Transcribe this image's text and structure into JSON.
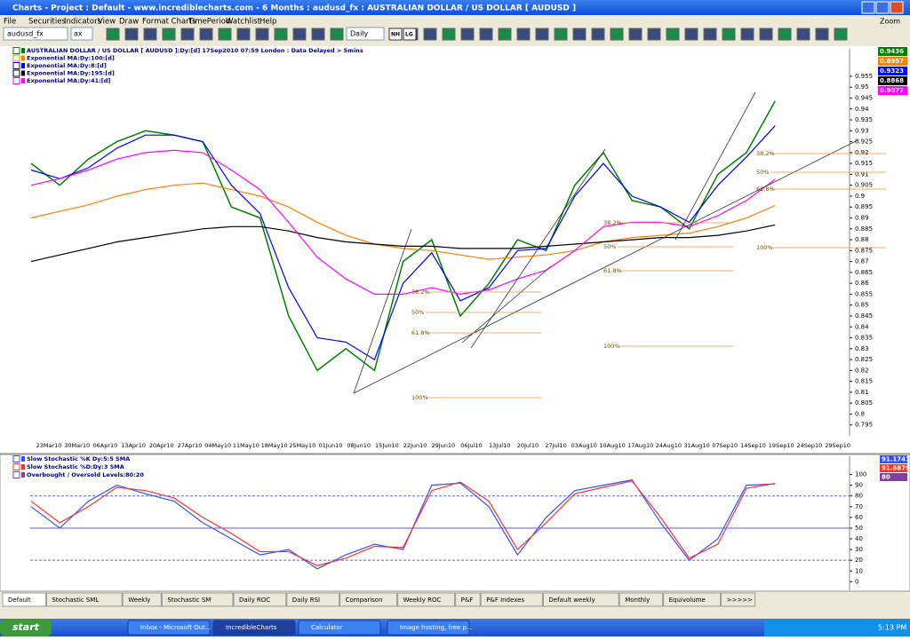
{
  "window": {
    "title": "Charts - Project : Default - www.incrediblecharts.com - 6 Months : audusd_fx : AUSTRALIAN DOLLAR / US DOLLAR [ AUDUSD ]",
    "zoom": "Zoom"
  },
  "menu": [
    "File",
    "Securities",
    "Indicators",
    "View",
    "Draw",
    "Format Charts",
    "TimePeriod",
    "Watchlist",
    "Help"
  ],
  "toolbar": {
    "symbol": "audusd_fx",
    "field": "ax",
    "period": "Daily",
    "buttons": [
      "NH",
      "LG"
    ]
  },
  "price_chart": {
    "type": "line",
    "ylim": [
      0.79,
      0.9676
    ],
    "yticks": [
      0.955,
      0.95,
      0.945,
      0.94,
      0.935,
      0.93,
      0.925,
      0.92,
      0.915,
      0.91,
      0.905,
      0.9,
      0.895,
      0.89,
      0.885,
      0.88,
      0.875,
      0.87,
      0.865,
      0.86,
      0.855,
      0.85,
      0.845,
      0.84,
      0.835,
      0.83,
      0.825,
      0.82,
      0.815,
      0.81,
      0.805,
      0.8,
      0.795
    ],
    "categories": [
      "23Mar10",
      "30Mar10",
      "06Apr10",
      "13Apr10",
      "20Apr10",
      "27Apr10",
      "04May10",
      "11May10",
      "18May10",
      "25May10",
      "01Jun10",
      "08Jun10",
      "15Jun10",
      "22Jun10",
      "29Jun10",
      "06Jul10",
      "13Jul10",
      "20Jul10",
      "27Jul10",
      "03Aug10",
      "10Aug10",
      "17Aug10",
      "24Aug10",
      "31Aug10",
      "07Sep10",
      "14Sep10",
      "19Sep10",
      "24Sep10",
      "29Sep10"
    ],
    "series": [
      {
        "name": "AUSTRALIAN DOLLAR / US DOLLAR [ AUDUSD ]:Dy:[d] 17Sep2010 07:59 London : Data Delayed > 5mins",
        "color": "#008000",
        "last_value": 0.9436,
        "values": [
          0.915,
          0.905,
          0.917,
          0.925,
          0.93,
          0.928,
          0.925,
          0.895,
          0.89,
          0.845,
          0.82,
          0.83,
          0.82,
          0.87,
          0.88,
          0.845,
          0.86,
          0.88,
          0.875,
          0.905,
          0.92,
          0.898,
          0.895,
          0.885,
          0.91,
          0.92,
          0.9436
        ]
      },
      {
        "name": "Exponential MA:Dy:100:[d]",
        "color": "#ff8000",
        "last_value": 0.8957,
        "values": [
          0.89,
          0.893,
          0.896,
          0.9,
          0.903,
          0.905,
          0.906,
          0.903,
          0.9,
          0.895,
          0.888,
          0.882,
          0.878,
          0.876,
          0.875,
          0.873,
          0.871,
          0.872,
          0.873,
          0.875,
          0.879,
          0.881,
          0.882,
          0.883,
          0.886,
          0.89,
          0.8957
        ]
      },
      {
        "name": "Exponential MA:Dy:8:[d]",
        "color": "#0000ff",
        "last_value": 0.9323,
        "values": [
          0.912,
          0.908,
          0.913,
          0.922,
          0.928,
          0.928,
          0.925,
          0.905,
          0.892,
          0.858,
          0.835,
          0.833,
          0.825,
          0.86,
          0.874,
          0.852,
          0.858,
          0.875,
          0.876,
          0.9,
          0.915,
          0.9,
          0.895,
          0.888,
          0.905,
          0.918,
          0.9323
        ]
      },
      {
        "name": "Exponential MA:Dy:195:[d]",
        "color": "#000000",
        "last_value": 0.8868,
        "values": [
          0.87,
          0.873,
          0.876,
          0.879,
          0.881,
          0.883,
          0.885,
          0.886,
          0.886,
          0.884,
          0.881,
          0.879,
          0.878,
          0.877,
          0.877,
          0.876,
          0.876,
          0.876,
          0.877,
          0.878,
          0.879,
          0.88,
          0.881,
          0.881,
          0.882,
          0.884,
          0.8868
        ]
      },
      {
        "name": "Exponential MA:Dy:41:[d]",
        "color": "#ff00ff",
        "last_value": 0.9077,
        "values": [
          0.905,
          0.908,
          0.912,
          0.917,
          0.92,
          0.921,
          0.92,
          0.912,
          0.903,
          0.888,
          0.872,
          0.862,
          0.855,
          0.855,
          0.858,
          0.855,
          0.857,
          0.862,
          0.866,
          0.875,
          0.886,
          0.888,
          0.888,
          0.886,
          0.891,
          0.898,
          0.9077
        ]
      }
    ],
    "fib_labels": [
      "38.2%",
      "50%",
      "61.8%",
      "100%",
      "38.2%",
      "50%",
      "61.8%",
      "100%",
      "38.2%",
      "50%",
      "61.8%",
      "100%"
    ]
  },
  "stochastic": {
    "type": "line",
    "ylim": [
      -8,
      117
    ],
    "yticks": [
      100,
      90,
      80,
      70,
      60,
      50,
      40,
      30,
      20,
      10,
      0
    ],
    "series": [
      {
        "name": "Slow Stochastic %K Dy:5:5 SMA",
        "color": "#3050ff",
        "last_value": 91.1747,
        "values": [
          70,
          50,
          75,
          90,
          82,
          75,
          55,
          40,
          25,
          30,
          12,
          25,
          35,
          30,
          90,
          92,
          70,
          25,
          60,
          85,
          90,
          95,
          55,
          20,
          40,
          90,
          91.1747
        ]
      },
      {
        "name": "Slow Stochastic %D:Dy:3 SMA",
        "color": "#ff3030",
        "last_value": 91.6879,
        "values": [
          75,
          55,
          70,
          88,
          85,
          78,
          60,
          45,
          28,
          28,
          15,
          22,
          33,
          32,
          85,
          93,
          75,
          30,
          55,
          82,
          88,
          94,
          60,
          22,
          35,
          87,
          91.6879
        ]
      }
    ],
    "levels": {
      "name": "Overbought / Oversold Levels:80:20",
      "values": [
        80,
        20
      ]
    }
  },
  "tabs": [
    "Default",
    "Stochastic SML",
    "Weekly",
    "Stochastic SM",
    "Daily ROC",
    "Daily RSI",
    "Comparison",
    "Weekly ROC",
    "P&F",
    "P&F Indexes",
    "Default weekly",
    "Monthly",
    "Equivolume",
    ">>>>>"
  ],
  "taskbar": {
    "start": "start",
    "items": [
      "Inbox - Microsoft Out...",
      "IncredibleCharts",
      "Calculator",
      "Image hosting, free p..."
    ],
    "clock": "5:13 PM"
  }
}
